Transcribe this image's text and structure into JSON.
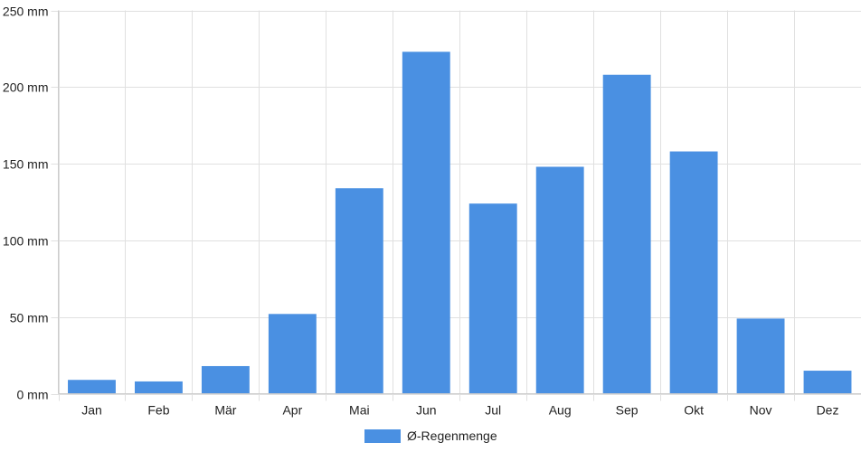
{
  "chart_data": {
    "type": "bar",
    "categories": [
      "Jan",
      "Feb",
      "Mär",
      "Apr",
      "Mai",
      "Jun",
      "Jul",
      "Aug",
      "Sep",
      "Okt",
      "Nov",
      "Dez"
    ],
    "series": [
      {
        "name": "Ø-Regenmenge",
        "color": "#4a90e2",
        "values": [
          9,
          8,
          18,
          52,
          134,
          223,
          124,
          148,
          208,
          158,
          49,
          15
        ]
      }
    ],
    "y_ticks": [
      "0 mm",
      "50 mm",
      "100 mm",
      "150 mm",
      "200 mm",
      "250 mm"
    ],
    "ylim": [
      0,
      250
    ],
    "grid": true,
    "legend_position": "bottom-center"
  }
}
